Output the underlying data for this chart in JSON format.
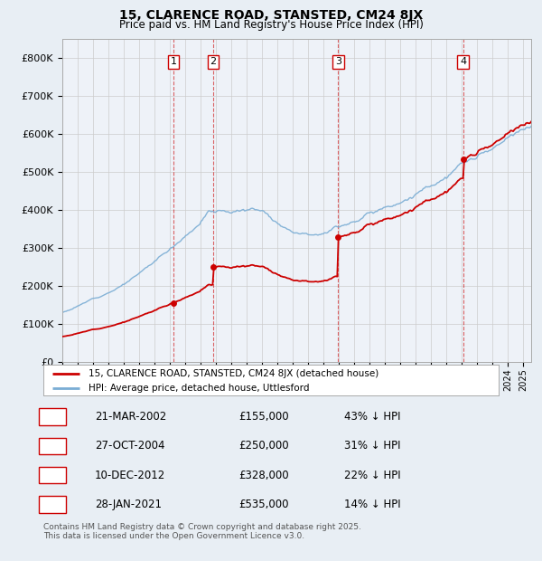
{
  "title": "15, CLARENCE ROAD, STANSTED, CM24 8JX",
  "subtitle": "Price paid vs. HM Land Registry's House Price Index (HPI)",
  "legend_line1": "15, CLARENCE ROAD, STANSTED, CM24 8JX (detached house)",
  "legend_line2": "HPI: Average price, detached house, Uttlesford",
  "transactions": [
    {
      "num": 1,
      "date": "21-MAR-2002",
      "price": 155000,
      "pct": "43%",
      "year": 2002.22
    },
    {
      "num": 2,
      "date": "27-OCT-2004",
      "price": 250000,
      "pct": "31%",
      "year": 2004.82
    },
    {
      "num": 3,
      "date": "10-DEC-2012",
      "price": 328000,
      "pct": "22%",
      "year": 2012.94
    },
    {
      "num": 4,
      "date": "28-JAN-2021",
      "price": 535000,
      "pct": "14%",
      "year": 2021.08
    }
  ],
  "price_line_color": "#cc0000",
  "hpi_line_color": "#7aadd4",
  "background_color": "#e8eef4",
  "plot_bg_color": "#eef2f8",
  "grid_color": "#cccccc",
  "ylim": [
    0,
    850000
  ],
  "xlim_start": 1995.0,
  "xlim_end": 2025.5,
  "footer": "Contains HM Land Registry data © Crown copyright and database right 2025.\nThis data is licensed under the Open Government Licence v3.0.",
  "table_rows": [
    [
      "1",
      "21-MAR-2002",
      "£155,000",
      "43% ↓ HPI"
    ],
    [
      "2",
      "27-OCT-2004",
      "£250,000",
      "31% ↓ HPI"
    ],
    [
      "3",
      "10-DEC-2012",
      "£328,000",
      "22% ↓ HPI"
    ],
    [
      "4",
      "28-JAN-2021",
      "£535,000",
      "14% ↓ HPI"
    ]
  ]
}
